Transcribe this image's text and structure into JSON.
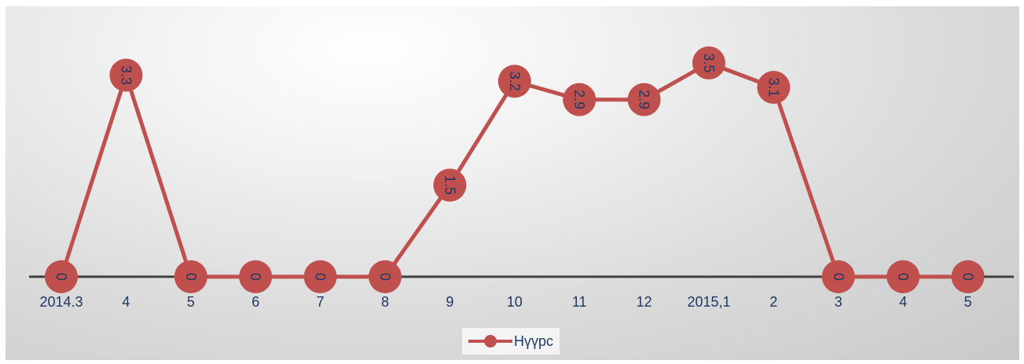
{
  "chart_data": {
    "type": "line",
    "categories": [
      "2014.3",
      "4",
      "5",
      "6",
      "7",
      "8",
      "9",
      "10",
      "11",
      "12",
      "2015,1",
      "2",
      "3",
      "4",
      "5"
    ],
    "series": [
      {
        "name": "Нүүрс",
        "values": [
          0,
          3.3,
          0,
          0,
          0,
          0,
          1.5,
          3.2,
          2.9,
          2.9,
          3.5,
          3.1,
          0,
          0,
          0
        ],
        "labels": [
          "0",
          "3.3",
          "0",
          "0",
          "0",
          "0",
          "1.5",
          "3.2",
          "2.9",
          "2.9",
          "3.5",
          "3.1",
          "0",
          "0",
          "0"
        ]
      }
    ],
    "title": "",
    "xlabel": "",
    "ylabel": "",
    "ylim": [
      0,
      3.8
    ],
    "grid": false,
    "legend_position": "bottom",
    "colors": {
      "series": "#c0504d",
      "axis": "#404040",
      "text": "#1f3864"
    }
  }
}
